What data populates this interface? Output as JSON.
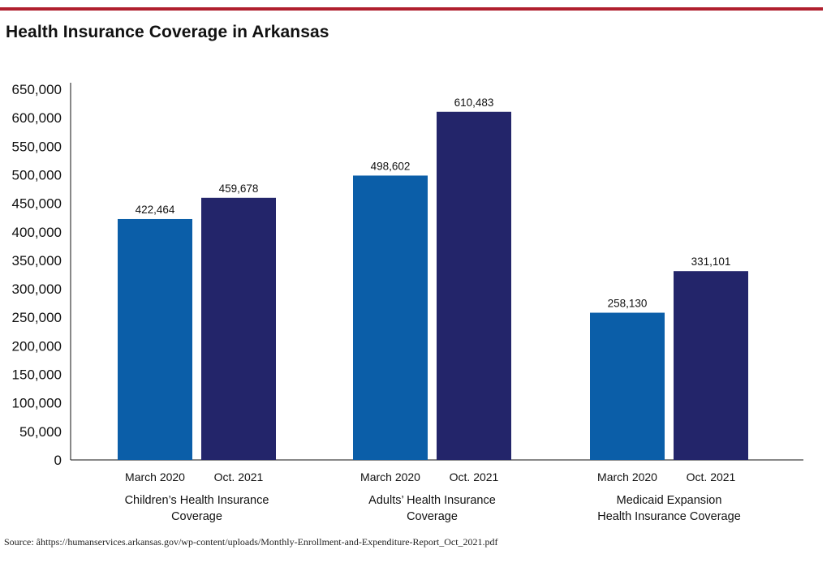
{
  "colors": {
    "accent_rule": "#b01f2e",
    "series_march_2020": "#0b5ea8",
    "series_oct_2021": "#23256a",
    "axis": "#111111"
  },
  "title": "Health Insurance Coverage in Arkansas",
  "source": "Source: âhttps://humanservices.arkansas.gov/wp-content/uploads/Monthly-Enrollment-and-Expenditure-Report_Oct_2021.pdf",
  "chart_data": {
    "type": "bar",
    "title": "Health Insurance Coverage in Arkansas",
    "xlabel": "",
    "ylabel": "",
    "ylim": [
      0,
      650000
    ],
    "yticks": [
      0,
      50000,
      100000,
      150000,
      200000,
      250000,
      300000,
      350000,
      400000,
      450000,
      500000,
      550000,
      600000,
      650000
    ],
    "ytick_labels": [
      "0",
      "50,000",
      "100,000",
      "150,000",
      "200,000",
      "250,000",
      "300,000",
      "350,000",
      "400,000",
      "450,000",
      "500,000",
      "550,000",
      "600,000",
      "650,000"
    ],
    "grid": false,
    "legend": "none",
    "categories": [
      [
        "Children’s Health Insurance",
        "Coverage"
      ],
      [
        "Adults’ Health Insurance",
        "Coverage"
      ],
      [
        "Medicaid Expansion",
        "Health Insurance Coverage"
      ]
    ],
    "series": [
      {
        "name": "March 2020",
        "values": [
          422464,
          498602,
          258130
        ],
        "labels": [
          "422,464",
          "498,602",
          "258,130"
        ]
      },
      {
        "name": "Oct. 2021",
        "values": [
          459678,
          610483,
          331101
        ],
        "labels": [
          "459,678",
          "610,483",
          "331,101"
        ]
      }
    ]
  }
}
